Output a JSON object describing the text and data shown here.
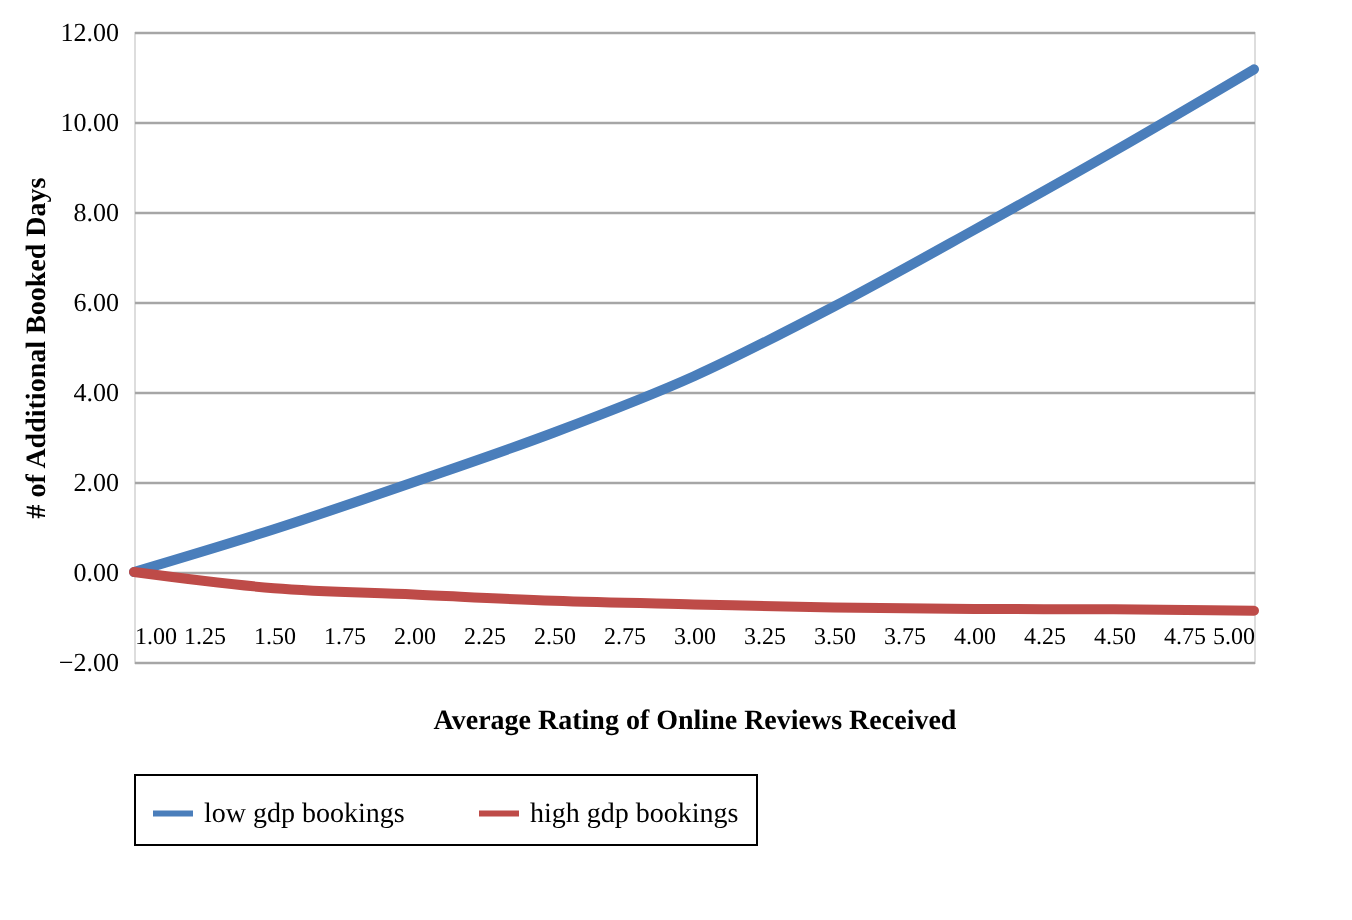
{
  "chart_data": {
    "type": "line",
    "xlabel": "Average Rating of Online Reviews Received",
    "ylabel": "# of Additional Booked Days",
    "x": [
      1,
      1.5,
      2,
      2.5,
      3,
      3.5,
      4,
      4.5,
      5
    ],
    "series": [
      {
        "name": "low gdp bookings",
        "color": "#4a7ebb",
        "values": [
          0,
          0.95,
          2.0,
          3.1,
          4.35,
          5.9,
          7.6,
          9.35,
          11.17
        ]
      },
      {
        "name": "high gdp bookings",
        "color": "#be4b48",
        "values": [
          0,
          -0.36,
          -0.5,
          -0.64,
          -0.72,
          -0.79,
          -0.82,
          -0.83,
          -0.86
        ]
      }
    ],
    "xlim": [
      1,
      5
    ],
    "xticks": [
      {
        "value": 1,
        "label": "1.00"
      },
      {
        "value": 1.25,
        "label": "1.25"
      },
      {
        "value": 1.5,
        "label": "1.50"
      },
      {
        "value": 1.75,
        "label": "1.75"
      },
      {
        "value": 2,
        "label": "2.00"
      },
      {
        "value": 2.25,
        "label": "2.25"
      },
      {
        "value": 2.5,
        "label": "2.50"
      },
      {
        "value": 2.75,
        "label": "2.75"
      },
      {
        "value": 3,
        "label": "3.00"
      },
      {
        "value": 3.25,
        "label": "3.25"
      },
      {
        "value": 3.5,
        "label": "3.50"
      },
      {
        "value": 3.75,
        "label": "3.75"
      },
      {
        "value": 4,
        "label": "4.00"
      },
      {
        "value": 4.25,
        "label": "4.25"
      },
      {
        "value": 4.5,
        "label": "4.50"
      },
      {
        "value": 4.75,
        "label": "4.75"
      },
      {
        "value": 5,
        "label": "5.00"
      }
    ],
    "ylim": [
      -2,
      12
    ],
    "yticks": [
      {
        "value": -2,
        "label": "−2.00"
      },
      {
        "value": 0,
        "label": "0.00"
      },
      {
        "value": 2,
        "label": "2.00"
      },
      {
        "value": 4,
        "label": "4.00"
      },
      {
        "value": 6,
        "label": "6.00"
      },
      {
        "value": 8,
        "label": "8.00"
      },
      {
        "value": 10,
        "label": "10.00"
      },
      {
        "value": 12,
        "label": "12.00"
      }
    ],
    "grid": "y",
    "legend": "bottom",
    "marker": "none",
    "line_style": "solid"
  }
}
